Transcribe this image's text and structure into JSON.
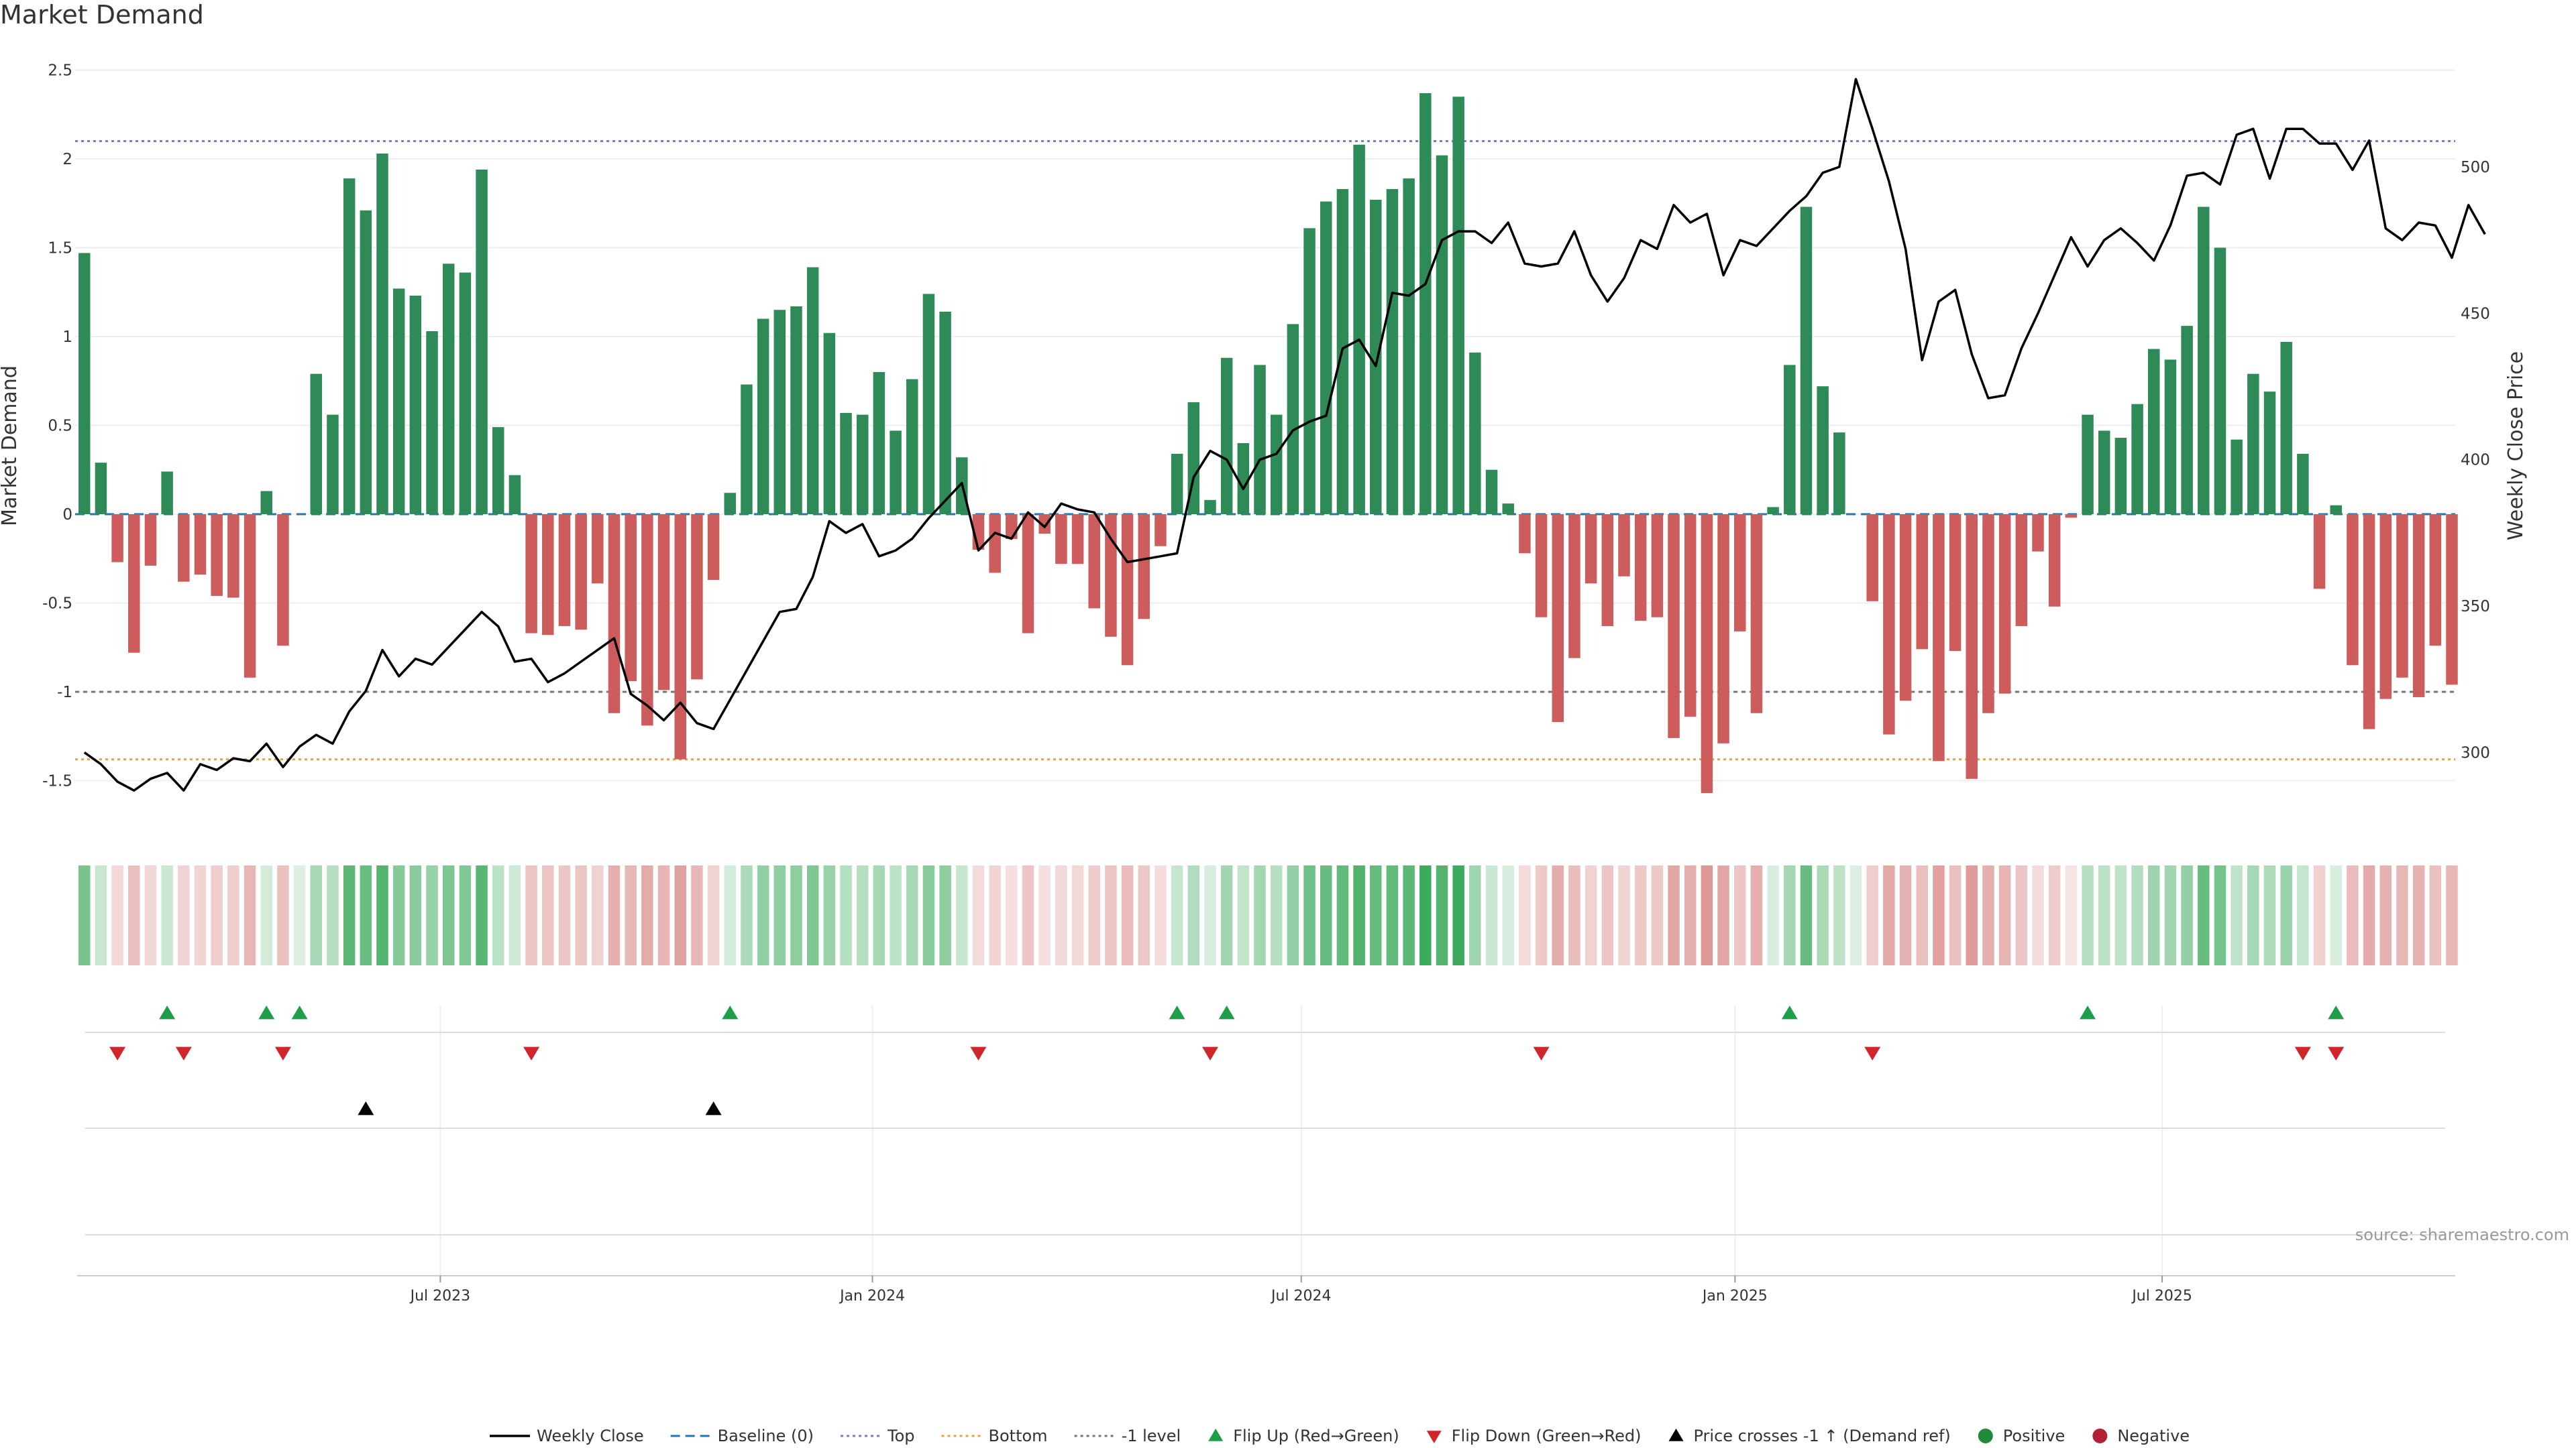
{
  "colors": {
    "positive": "#2e8b57",
    "negative": "#cd5c5c",
    "price": "#000000",
    "top": "#7b7bc8",
    "bottom": "#e8a33b",
    "minus1": "#777777",
    "baseline": "#1f77b4",
    "flip_up": "#1f9e4a",
    "flip_down": "#d0262b",
    "cross": "#000000",
    "pos_dot": "#1f8a3a",
    "neg_dot": "#b22234"
  },
  "chart_data": {
    "type": "bar+line",
    "title": "Market Demand",
    "ylabel_left": "Market Demand",
    "ylabel_right": "Weekly Close Price",
    "source": "source: sharemaestro.com",
    "ylim_left": [
      -1.8,
      2.5
    ],
    "ylim_right": [
      285,
      540
    ],
    "left_ticks": [
      "2.5",
      "2",
      "1.5",
      "1",
      "0.5",
      "0",
      "-0.5",
      "-1",
      "-1.5"
    ],
    "left_tick_values": [
      2.5,
      2,
      1.5,
      1,
      0.5,
      0,
      -0.5,
      -1,
      -1.5
    ],
    "right_ticks": [
      "500",
      "450",
      "400",
      "350",
      "300"
    ],
    "right_tick_values": [
      500,
      450,
      400,
      350,
      300
    ],
    "reference_lines": {
      "top": 2.1,
      "bottom": -1.38,
      "minus_one": -1.0,
      "baseline": 0
    },
    "date_labels": [
      {
        "label": "Jul 2023",
        "week": 21.5
      },
      {
        "label": "Jan 2024",
        "week": 47.6
      },
      {
        "label": "Jul 2024",
        "week": 73.5
      },
      {
        "label": "Jan 2025",
        "week": 99.7
      },
      {
        "label": "Jul 2025",
        "week": 125.5
      }
    ],
    "demand": [
      1.47,
      0.29,
      -0.27,
      -0.78,
      -0.29,
      0.24,
      -0.38,
      -0.34,
      -0.46,
      -0.47,
      -0.92,
      0.13,
      -0.74,
      0,
      0.79,
      0.56,
      1.89,
      1.71,
      2.03,
      1.27,
      1.23,
      1.03,
      1.41,
      1.36,
      1.94,
      0.49,
      0.22,
      -0.67,
      -0.68,
      -0.63,
      -0.65,
      -0.39,
      -1.12,
      -0.94,
      -1.19,
      -0.99,
      -1.38,
      -0.93,
      -0.37,
      0.12,
      0.73,
      1.1,
      1.15,
      1.17,
      1.39,
      1.02,
      0.57,
      0.56,
      0.8,
      0.47,
      0.76,
      1.24,
      1.14,
      0.32,
      -0.2,
      -0.33,
      -0.14,
      -0.67,
      -0.11,
      -0.28,
      -0.28,
      -0.53,
      -0.69,
      -0.85,
      -0.59,
      -0.18,
      0.34,
      0.63,
      0.08,
      0.88,
      0.4,
      0.84,
      0.56,
      1.07,
      1.61,
      1.76,
      1.83,
      2.08,
      1.77,
      1.83,
      1.89,
      2.37,
      2.02,
      2.35,
      0.91,
      0.25,
      0.06,
      -0.22,
      -0.58,
      -1.17,
      -0.81,
      -0.39,
      -0.63,
      -0.35,
      -0.6,
      -0.58,
      -1.26,
      -1.14,
      -1.57,
      -1.29,
      -0.66,
      -1.12,
      0.04,
      0.84,
      1.73,
      0.72,
      0.46,
      0,
      -0.49,
      -1.24,
      -1.05,
      -0.76,
      -1.39,
      -0.77,
      -1.49,
      -1.12,
      -1.01,
      -0.63,
      -0.21,
      -0.52,
      -0.02,
      0.56,
      0.47,
      0.43,
      0.62,
      0.93,
      0.87,
      1.06,
      1.73,
      1.5,
      0.42,
      0.79,
      0.69,
      0.97,
      0.34,
      -0.42,
      0.05,
      -0.85,
      -1.21,
      -1.04,
      -0.92,
      -1.03,
      -0.74,
      -0.96
    ],
    "price": [
      300,
      296,
      290,
      287,
      291,
      293,
      287,
      296,
      294,
      298,
      297,
      303,
      295,
      302,
      306,
      303,
      314,
      321,
      335,
      326,
      332,
      330,
      336,
      342,
      348,
      343,
      331,
      332,
      324,
      327,
      331,
      335,
      339,
      320,
      316,
      311,
      317,
      310,
      308,
      318,
      328,
      338,
      348,
      349,
      360,
      379,
      375,
      378,
      367,
      369,
      373,
      380,
      386,
      392,
      369,
      375,
      373,
      382,
      377,
      385,
      383,
      382,
      373,
      365,
      366,
      367,
      368,
      394,
      403,
      400,
      390,
      400,
      402,
      410,
      413,
      415,
      438,
      441,
      432,
      457,
      456,
      460,
      475,
      478,
      478,
      474,
      481,
      467,
      466,
      467,
      478,
      463,
      454,
      462,
      475,
      472,
      487,
      481,
      484,
      463,
      475,
      473,
      479,
      485,
      490,
      498,
      500,
      530,
      513,
      495,
      472,
      434,
      454,
      458,
      436,
      421,
      422,
      438,
      450,
      463,
      476,
      466,
      475,
      479,
      474,
      468,
      480,
      497,
      498,
      494,
      511,
      513,
      496,
      513,
      513,
      508,
      508,
      499,
      509,
      479,
      475,
      481,
      480,
      469,
      487,
      477
    ]
  },
  "strips": {
    "heat_label": "",
    "flip_up_weeks": [
      5,
      11,
      13,
      39,
      66,
      69,
      103,
      121,
      136
    ],
    "flip_down_weeks": [
      2,
      6,
      12,
      27,
      54,
      68,
      88,
      108,
      134,
      136
    ],
    "cross_weeks": [
      17,
      38
    ]
  },
  "legend": [
    {
      "kind": "line",
      "label": "Weekly Close"
    },
    {
      "kind": "dash-baseline",
      "label": "Baseline (0)"
    },
    {
      "kind": "dot-top",
      "label": "Top"
    },
    {
      "kind": "dot-bottom",
      "label": "Bottom"
    },
    {
      "kind": "dot-minus1",
      "label": "-1 level"
    },
    {
      "kind": "tri-up-green",
      "label": "Flip Up (Red→Green)"
    },
    {
      "kind": "tri-down-red",
      "label": "Flip Down (Green→Red)"
    },
    {
      "kind": "tri-up-black",
      "label": "Price crosses -1 ↑ (Demand ref)"
    },
    {
      "kind": "dot-green",
      "label": "Positive"
    },
    {
      "kind": "dot-red",
      "label": "Negative"
    }
  ]
}
